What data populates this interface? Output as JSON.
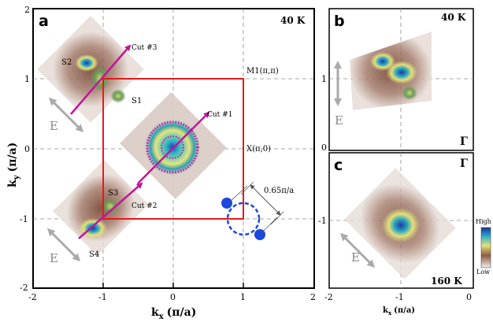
{
  "panels": {
    "a": {
      "letter": "a",
      "temperature": "40 K"
    },
    "b": {
      "letter": "b",
      "temperature": "40 K",
      "gamma": "Γ"
    },
    "c": {
      "letter": "c",
      "temperature": "160 K",
      "gamma": "Γ"
    }
  },
  "axes": {
    "a_x_ticks": [
      "-2",
      "-1",
      "0",
      "1",
      "2"
    ],
    "a_y_ticks": [
      "2",
      "1",
      "0",
      "-1",
      "-2"
    ],
    "right_y_ticks": [
      "1",
      "0",
      "-1"
    ],
    "right_x_ticks": [
      "-2",
      "-1",
      "0"
    ],
    "xlabel_main": "k",
    "xlabel_sub": "x",
    "xlabel_unit": "(π/a)",
    "ylabel_main": "k",
    "ylabel_sub": "y",
    "ylabel_unit": "(π/a)",
    "xlabel_c_main": "k",
    "xlabel_c_sub": "x",
    "xlabel_c_unit": "(π/a)"
  },
  "annotations": {
    "m1": "M1(π,π)",
    "x": "X(π,0)",
    "cut1": "Cut #1",
    "cut2": "Cut #2",
    "cut3": "Cut #3",
    "s1": "S1",
    "s2": "S2",
    "s3": "S3",
    "s4": "S4",
    "e_a_top": "E",
    "e_a_bottom": "E",
    "e_b": "E",
    "e_c": "E",
    "distance": "0.65π/a"
  },
  "colorbar": {
    "high": "High",
    "low": "Low"
  },
  "colors": {
    "bz_boundary": "#e8191c",
    "cut_arrow": "#c0169a",
    "blue_circle": "#1a47e0",
    "e_arrow": "#aaaaaa"
  }
}
